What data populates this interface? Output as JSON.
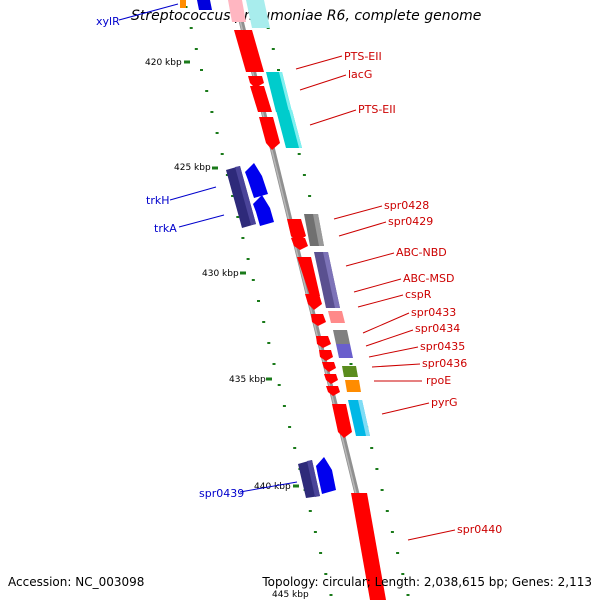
{
  "title": "Streptococcus pneumoniae R6, complete genome",
  "footer": {
    "accession": "Accession: NC_003098",
    "topology": "Topology: circular; Length: 2,038,615 bp; Genes: 2,113"
  },
  "colors": {
    "backbone": "#888888",
    "forward_label": "#cc0000",
    "reverse_label": "#0000cc",
    "ruler": "#1a7a1a"
  },
  "ruler_marks": [
    "420 kbp",
    "425 kbp",
    "430 kbp",
    "435 kbp",
    "440 kbp",
    "445 kbp"
  ],
  "forward_labels": [
    "PTS-EII",
    "lacG",
    "PTS-EII",
    "spr0428",
    "spr0429",
    "ABC-NBD",
    "ABC-MSD",
    "cspR",
    "spr0433",
    "spr0434",
    "spr0435",
    "spr0436",
    "rpoE",
    "pyrG",
    "spr0440"
  ],
  "reverse_labels": [
    "xylR",
    "trkH",
    "trkA",
    "spr0439"
  ]
}
